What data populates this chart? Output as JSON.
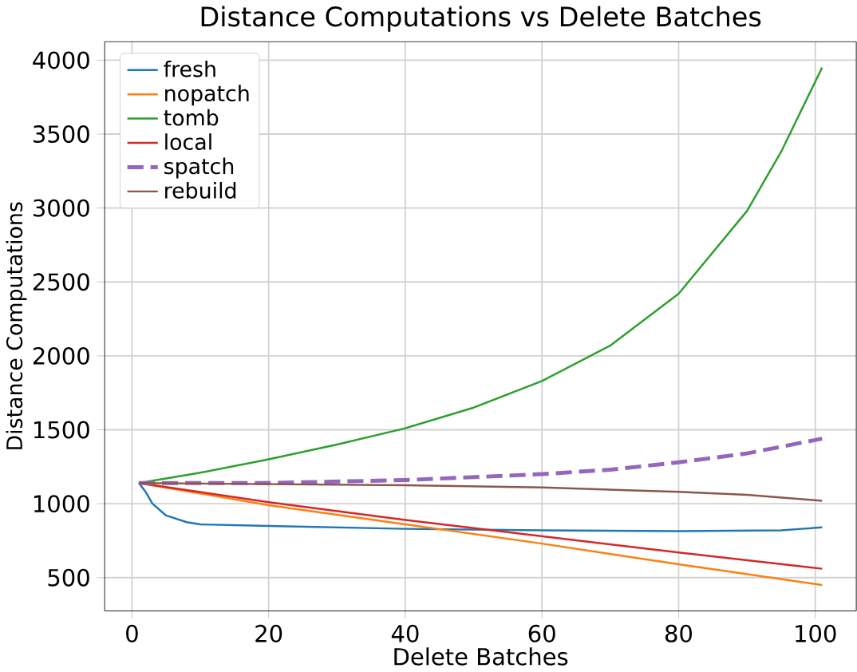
{
  "chart_data": {
    "type": "line",
    "title": "Distance Computations vs Delete Batches",
    "xlabel": "Delete Batches",
    "ylabel": "Distance Computations",
    "xlim": [
      -4,
      106
    ],
    "ylim": [
      275,
      4125
    ],
    "xticks": [
      0,
      20,
      40,
      60,
      80,
      100
    ],
    "yticks": [
      500,
      1000,
      1500,
      2000,
      2500,
      3000,
      3500,
      4000
    ],
    "grid": true,
    "legend": "top left",
    "series": [
      {
        "name": "fresh",
        "color": "#1f77b4",
        "x": [
          1,
          2,
          3,
          5,
          8,
          10,
          20,
          40,
          60,
          80,
          95,
          98,
          101
        ],
        "values": [
          1140,
          1080,
          1000,
          920,
          875,
          860,
          850,
          830,
          820,
          815,
          820,
          830,
          840
        ]
      },
      {
        "name": "nopatch",
        "color": "#ff7f0e",
        "x": [
          1,
          20,
          40,
          60,
          80,
          101
        ],
        "values": [
          1140,
          990,
          860,
          730,
          590,
          450
        ]
      },
      {
        "name": "tomb",
        "color": "#2ca02c",
        "x": [
          1,
          10,
          20,
          30,
          40,
          50,
          60,
          70,
          80,
          90,
          95,
          101
        ],
        "values": [
          1140,
          1210,
          1300,
          1400,
          1510,
          1650,
          1830,
          2070,
          2420,
          2980,
          3380,
          3950
        ]
      },
      {
        "name": "local",
        "color": "#d62728",
        "x": [
          1,
          20,
          40,
          60,
          80,
          101
        ],
        "values": [
          1140,
          1010,
          890,
          780,
          670,
          560
        ]
      },
      {
        "name": "spatch",
        "color": "#9467bd",
        "line_style": "dashed",
        "x": [
          1,
          20,
          40,
          60,
          70,
          80,
          90,
          101
        ],
        "values": [
          1140,
          1140,
          1160,
          1200,
          1230,
          1280,
          1340,
          1440
        ]
      },
      {
        "name": "rebuild",
        "color": "#8c564b",
        "x": [
          1,
          40,
          60,
          80,
          90,
          101
        ],
        "values": [
          1140,
          1125,
          1110,
          1080,
          1060,
          1020
        ]
      }
    ]
  }
}
